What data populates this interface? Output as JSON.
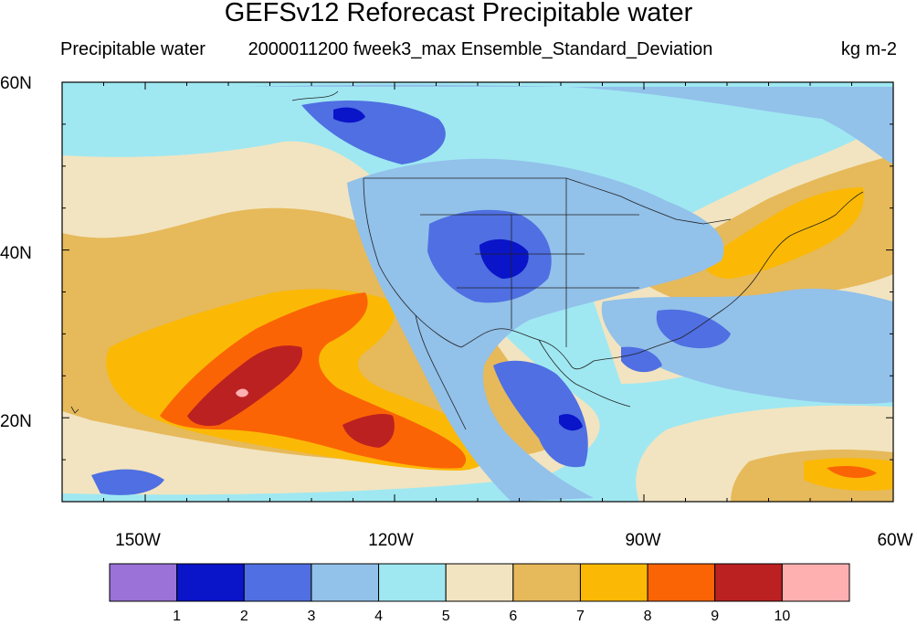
{
  "title": "GEFSv12 Reforecast Precipitable water",
  "subtitle_left": "Precipitable water",
  "subtitle_center": "2000011200 fweek3_max Ensemble_Standard_Deviation",
  "subtitle_right": "kg m-2",
  "lat_ticks": [
    "60N",
    "40N",
    "20N"
  ],
  "lon_ticks": [
    "150W",
    "120W",
    "90W",
    "60W"
  ],
  "colorbar": {
    "labels": [
      "1",
      "2",
      "3",
      "4",
      "5",
      "6",
      "7",
      "8",
      "9",
      "10"
    ],
    "colors": [
      "#9a72d8",
      "#0a14c8",
      "#4f6fe2",
      "#92c1ea",
      "#9fe8f2",
      "#f2e4c0",
      "#e6b95a",
      "#fbb905",
      "#fb6405",
      "#bc2121",
      "#feb0b0"
    ]
  },
  "map_extent": {
    "lon_min": -160,
    "lon_max": -60,
    "lat_min": 10,
    "lat_max": 60
  }
}
